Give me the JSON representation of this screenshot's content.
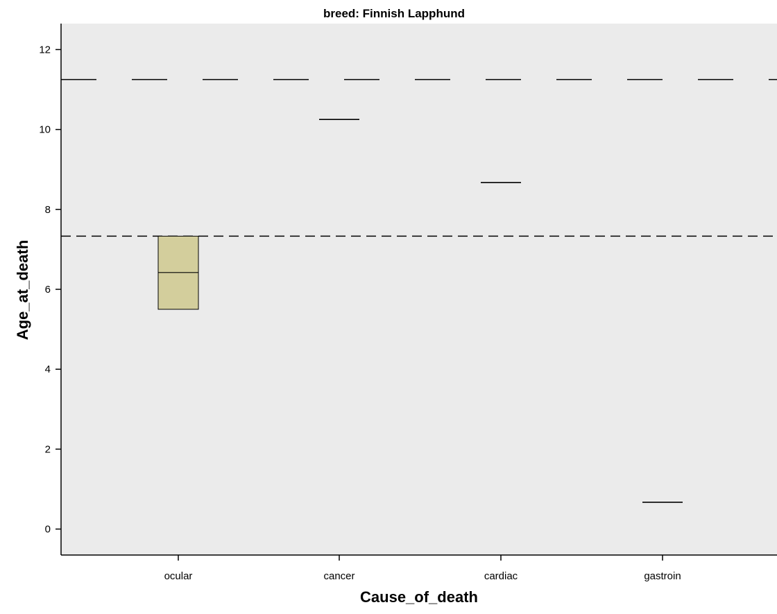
{
  "chart_data": {
    "type": "box",
    "title": "breed: Finnish Lapphund",
    "xlabel": "Cause_of_death",
    "ylabel": "Age_at_death",
    "categories": [
      "ocular",
      "cancer",
      "cardiac",
      "gastroin"
    ],
    "ylim": [
      -0.65,
      12.65
    ],
    "yticks": [
      0,
      2,
      4,
      6,
      8,
      10,
      12
    ],
    "boxes": [
      {
        "category": "ocular",
        "q1": 5.5,
        "median": 6.42,
        "q3": 7.33
      },
      {
        "category": "cancer",
        "q1": 10.25,
        "median": 10.25,
        "q3": 10.25
      },
      {
        "category": "cardiac",
        "q1": 8.67,
        "median": 8.67,
        "q3": 8.67
      },
      {
        "category": "gastroin",
        "q1": 0.67,
        "median": 0.67,
        "q3": 0.67
      }
    ],
    "reference_lines": [
      {
        "y": 11.25,
        "style": "long-dash"
      },
      {
        "y": 7.33,
        "style": "short-dash"
      }
    ],
    "grid": false,
    "colors": {
      "plot_background": "#ebebeb",
      "box_fill": "#d3ce9c",
      "line": "#000000"
    }
  }
}
